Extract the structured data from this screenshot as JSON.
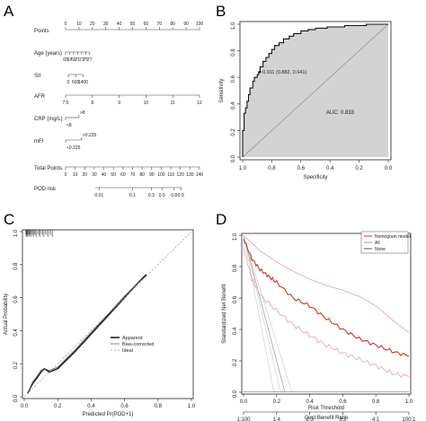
{
  "panels": {
    "A": "A",
    "B": "B",
    "C": "C",
    "D": "D"
  },
  "chart_data": [
    {
      "panel": "A",
      "type": "table",
      "description_type": "nomogram",
      "rows": [
        {
          "label": "Points",
          "ticks": [
            "0",
            "10",
            "20",
            "30",
            "40",
            "50",
            "60",
            "70",
            "80",
            "90",
            "100"
          ],
          "start": 0,
          "end": 100,
          "tick_side": "above"
        },
        {
          "label": "Age (years)",
          "ticks": [
            "65",
            "67",
            "69",
            "71",
            "73",
            "75",
            "77"
          ],
          "start": 0,
          "end": 18,
          "tick_side": "below"
        },
        {
          "label": "SII",
          "ticks": [
            "0",
            "600",
            "1400"
          ],
          "start": 2,
          "end": 13,
          "tick_side": "below"
        },
        {
          "label": "AFR",
          "ticks": [
            "7.5",
            "8",
            "9",
            "10",
            "11",
            "12"
          ],
          "start": 0,
          "end": 100,
          "tick_side": "below"
        },
        {
          "label": "CRP (mg/L)",
          "ticks": [
            ">8",
            "<8"
          ],
          "start": 0,
          "end": 10,
          "tick_side": "split"
        },
        {
          "label": "mFI",
          "ticks": [
            ">0.225",
            "<0.225"
          ],
          "start": 0,
          "end": 12,
          "tick_side": "split"
        },
        {
          "label": "Total Points",
          "ticks": [
            "0",
            "10",
            "20",
            "30",
            "40",
            "50",
            "60",
            "70",
            "80",
            "90",
            "100",
            "110",
            "120",
            "130",
            "140"
          ],
          "start": 0,
          "end": 100,
          "tick_side": "below"
        },
        {
          "label": "POD risk",
          "ticks": [
            "0.01",
            "0.1",
            "0.3",
            "0.5",
            "0.8",
            "0.9"
          ],
          "positions": [
            25,
            50,
            64,
            72,
            81,
            86
          ],
          "start": 22,
          "end": 87,
          "tick_side": "below"
        }
      ]
    },
    {
      "panel": "B",
      "type": "area",
      "xlabel": "Specificity",
      "ylabel": "Sensitivity",
      "xlim": [
        1.0,
        0.0
      ],
      "ylim": [
        0.0,
        1.0
      ],
      "xticks": [
        "1.0",
        "0.8",
        "0.6",
        "0.4",
        "0.2",
        "0.0"
      ],
      "yticks": [
        "0.0",
        "0.2",
        "0.4",
        "0.6",
        "0.8",
        "1.0"
      ],
      "annotations": [
        "0.911 (0.882, 0.641)",
        "AUC: 0.833"
      ],
      "auc": 0.833,
      "threshold_point": {
        "specificity": 0.882,
        "sensitivity": 0.641
      },
      "fill_color": "#d3d3d3",
      "roc": {
        "specificity": [
          1.0,
          1.0,
          0.99,
          0.99,
          0.98,
          0.98,
          0.97,
          0.97,
          0.96,
          0.96,
          0.95,
          0.95,
          0.93,
          0.93,
          0.92,
          0.92,
          0.9,
          0.9,
          0.89,
          0.89,
          0.88,
          0.88,
          0.86,
          0.86,
          0.84,
          0.84,
          0.82,
          0.82,
          0.8,
          0.8,
          0.78,
          0.78,
          0.75,
          0.75,
          0.72,
          0.72,
          0.68,
          0.68,
          0.65,
          0.65,
          0.6,
          0.6,
          0.55,
          0.55,
          0.5,
          0.5,
          0.42,
          0.42,
          0.3,
          0.3,
          0.15,
          0.15,
          0.0
        ],
        "sensitivity": [
          0.0,
          0.2,
          0.2,
          0.33,
          0.33,
          0.37,
          0.37,
          0.42,
          0.42,
          0.47,
          0.47,
          0.52,
          0.52,
          0.57,
          0.57,
          0.6,
          0.6,
          0.62,
          0.62,
          0.64,
          0.64,
          0.68,
          0.68,
          0.72,
          0.72,
          0.75,
          0.75,
          0.78,
          0.78,
          0.81,
          0.81,
          0.84,
          0.84,
          0.86,
          0.86,
          0.89,
          0.89,
          0.91,
          0.91,
          0.93,
          0.93,
          0.95,
          0.95,
          0.96,
          0.96,
          0.97,
          0.97,
          0.98,
          0.98,
          0.99,
          0.99,
          1.0,
          1.0
        ]
      }
    },
    {
      "panel": "C",
      "type": "line",
      "xlabel": "Predicted Pr(POD+1)",
      "ylabel": "Actual Probability",
      "xlim": [
        0.0,
        1.0
      ],
      "ylim": [
        0.0,
        1.0
      ],
      "xticks": [
        "0.0",
        "0.2",
        "0.4",
        "0.6",
        "0.8",
        "1.0"
      ],
      "yticks": [
        "0.0",
        "0.2",
        "0.4",
        "0.6",
        "0.8",
        "1.0"
      ],
      "legend": [
        "Apparent",
        "Bias-corrected",
        "Ideal"
      ],
      "series": [
        {
          "name": "Apparent",
          "x": [
            0.02,
            0.05,
            0.08,
            0.1,
            0.12,
            0.15,
            0.2,
            0.3,
            0.4,
            0.5,
            0.6,
            0.68,
            0.73
          ],
          "y": [
            0.02,
            0.08,
            0.12,
            0.15,
            0.17,
            0.15,
            0.17,
            0.27,
            0.38,
            0.49,
            0.6,
            0.69,
            0.74
          ]
        },
        {
          "name": "Bias-corrected",
          "x": [
            0.02,
            0.05,
            0.08,
            0.1,
            0.12,
            0.15,
            0.2,
            0.3,
            0.4,
            0.5,
            0.6,
            0.68,
            0.73
          ],
          "y": [
            0.02,
            0.09,
            0.13,
            0.16,
            0.17,
            0.16,
            0.18,
            0.28,
            0.39,
            0.5,
            0.61,
            0.69,
            0.73
          ]
        },
        {
          "name": "Ideal",
          "x": [
            0.0,
            1.0
          ],
          "y": [
            0.0,
            1.0
          ]
        }
      ]
    },
    {
      "panel": "D",
      "type": "line",
      "xlabel": "Risk Threshold",
      "ylabel": "Standardized Net Benefit",
      "x2label": "Cost:Benefit Ratio",
      "xlim": [
        0.0,
        1.0
      ],
      "ylim": [
        0.0,
        1.0
      ],
      "xticks": [
        "0.0",
        "0.2",
        "0.4",
        "0.6",
        "0.8",
        "1.0"
      ],
      "yticks": [
        "0.0",
        "0.2",
        "0.4",
        "0.6",
        "0.8",
        "1.0"
      ],
      "x2ticks": [
        "1:100",
        "1:4",
        "2:3",
        "3:2",
        "4:1",
        "100:1"
      ],
      "legend": [
        "Nomogram model",
        "All",
        "None"
      ],
      "series": [
        {
          "name": "Nomogram model",
          "x": [
            0.0,
            0.05,
            0.1,
            0.15,
            0.2,
            0.3,
            0.4,
            0.5,
            0.6,
            0.7,
            0.8,
            0.9,
            1.0
          ],
          "y": [
            0.98,
            0.85,
            0.78,
            0.74,
            0.7,
            0.6,
            0.55,
            0.47,
            0.4,
            0.34,
            0.3,
            0.26,
            0.23
          ]
        },
        {
          "name": "Nomogram CI upper",
          "x": [
            0.0,
            0.05,
            0.1,
            0.2,
            0.3,
            0.4,
            0.5,
            0.6,
            0.7,
            0.8,
            0.9,
            1.0
          ],
          "y": [
            1.0,
            0.95,
            0.9,
            0.83,
            0.77,
            0.72,
            0.68,
            0.65,
            0.61,
            0.55,
            0.46,
            0.38
          ]
        },
        {
          "name": "Nomogram CI lower",
          "x": [
            0.0,
            0.05,
            0.1,
            0.2,
            0.3,
            0.4,
            0.5,
            0.6,
            0.7,
            0.8,
            0.9,
            1.0
          ],
          "y": [
            0.92,
            0.72,
            0.62,
            0.52,
            0.43,
            0.36,
            0.3,
            0.25,
            0.21,
            0.17,
            0.12,
            0.1
          ]
        },
        {
          "name": "All",
          "x": [
            0.0,
            0.1,
            0.2,
            0.3
          ],
          "y": [
            1.0,
            0.6,
            0.2,
            -0.2
          ]
        },
        {
          "name": "None",
          "x": [
            0.0,
            1.0
          ],
          "y": [
            0.0,
            0.0
          ]
        }
      ],
      "colors": {
        "model": "#c0392b",
        "ci": "#e8a0a0",
        "all": "#9a9a9a",
        "none": "#555555"
      }
    }
  ]
}
